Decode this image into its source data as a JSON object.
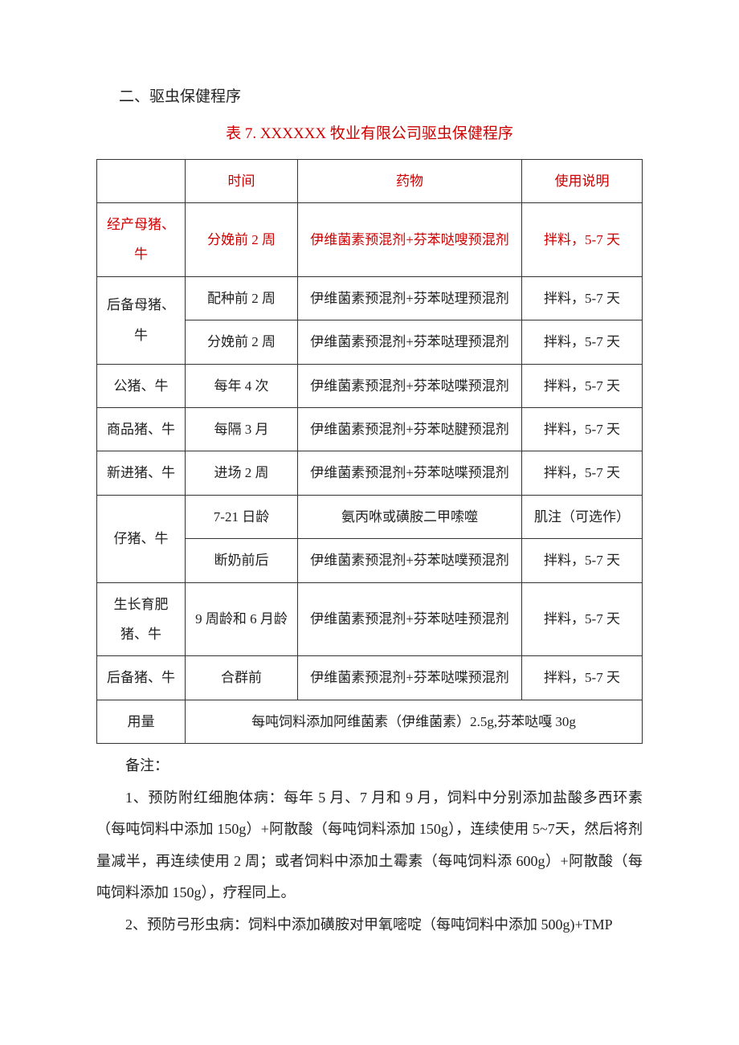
{
  "colors": {
    "text": "#222222",
    "accent_red": "#cc0000",
    "border": "#333333",
    "background": "#ffffff"
  },
  "section_title": "二、驱虫保健程序",
  "table_caption": "表 7. XXXXXX 牧业有限公司驱虫保健程序",
  "headers": {
    "time": "时间",
    "drug": "药物",
    "usage": "使用说明"
  },
  "rows": {
    "r1": {
      "cat": "经产母猪、牛",
      "time": "分娩前 2 周",
      "drug": "伊维菌素预混剂+芬苯哒嗖预混剂",
      "usage": "拌料，5-7 天"
    },
    "r2a": {
      "cat": "后备母猪、牛",
      "time": "配种前 2 周",
      "drug": "伊维菌素预混剂+芬苯哒理预混剂",
      "usage": "拌料，5-7 天"
    },
    "r2b": {
      "time": "分娩前 2 周",
      "drug": "伊维菌素预混剂+芬苯哒理预混剂",
      "usage": "拌料，5-7 天"
    },
    "r3": {
      "cat": "公猪、牛",
      "time": "每年 4 次",
      "drug": "伊维菌素预混剂+芬苯哒喋预混剂",
      "usage": "拌料，5-7 天"
    },
    "r4": {
      "cat": "商品猪、牛",
      "time": "每隔 3 月",
      "drug": "伊维菌素预混剂+芬苯哒腱预混剂",
      "usage": "拌料，5-7 天"
    },
    "r5": {
      "cat": "新进猪、牛",
      "time": "进场 2 周",
      "drug": "伊维菌素预混剂+芬苯哒喋预混剂",
      "usage": "拌料，5-7 天"
    },
    "r6a": {
      "cat": "仔猪、牛",
      "time": "7-21 日龄",
      "drug": "氨丙咻或磺胺二甲嗦噬",
      "usage": "肌注（可选作）"
    },
    "r6b": {
      "time": "断奶前后",
      "drug": "伊维菌素预混剂+芬苯哒噗预混剂",
      "usage": "拌料，5-7 天"
    },
    "r7": {
      "cat": "生长育肥猪、牛",
      "time": "9 周龄和 6 月龄",
      "drug": "伊维菌素预混剂+芬苯哒哇预混剂",
      "usage": "拌料，5-7 天"
    },
    "r8": {
      "cat": "后备猪、牛",
      "time": "合群前",
      "drug": "伊维菌素预混剂+芬苯哒喋预混剂",
      "usage": "拌料，5-7 天"
    },
    "r9": {
      "cat": "用量",
      "note": "每吨饲料添加阿维菌素（伊维菌素）2.5g,芬苯哒嘎 30g"
    }
  },
  "notes": {
    "label": "备注：",
    "p1": "1、预防附红细胞体病：每年 5 月、7 月和 9 月，饲料中分别添加盐酸多西环素（每吨饲料中添加 150g）+阿散酸（每吨饲料添加 150g），连续使用 5~7天，然后将剂量减半，再连续使用 2 周；或者饲料中添加土霉素（每吨饲料添 600g）+阿散酸（每吨饲料添加 150g），疗程同上。",
    "p2": "2、预防弓形虫病：饲料中添加磺胺对甲氧嘧啶（每吨饲料中添加 500g)+TMP"
  }
}
